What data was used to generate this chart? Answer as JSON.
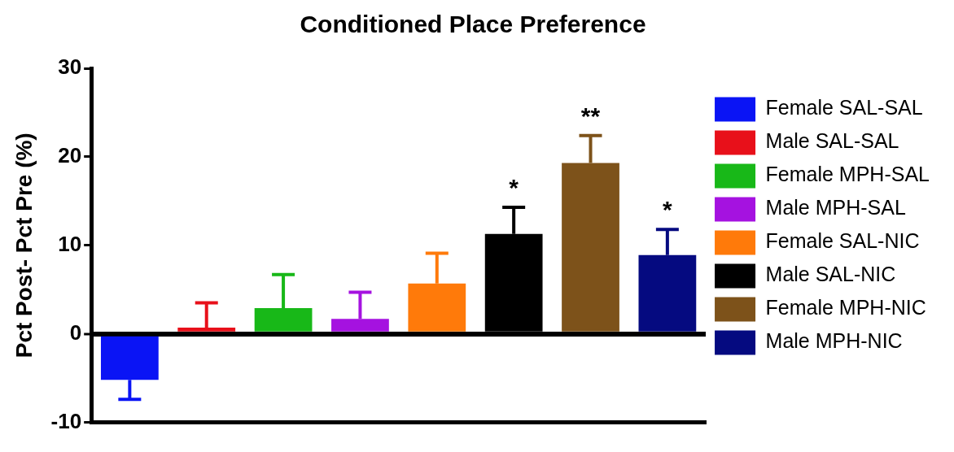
{
  "chart_data": {
    "type": "bar",
    "title": "Conditioned Place Preference",
    "ylabel": "Pct Post- Pct Pre (%)",
    "categories": [
      null,
      null,
      null,
      null,
      null,
      null,
      null,
      null
    ],
    "series": [
      {
        "name": "Female SAL-SAL",
        "color": "#0a14f5",
        "values": [
          -5.2,
          null,
          null,
          null,
          null,
          null,
          null,
          null
        ],
        "errors": [
          [
            -7.4,
            -5.2
          ],
          null,
          null,
          null,
          null,
          null,
          null,
          null
        ]
      },
      {
        "name": "Male SAL-SAL",
        "color": "#e8101a",
        "values": [
          null,
          0.7,
          null,
          null,
          null,
          null,
          null,
          null
        ],
        "errors": [
          null,
          [
            0.7,
            3.5
          ],
          null,
          null,
          null,
          null,
          null,
          null
        ]
      },
      {
        "name": "Female MPH-SAL",
        "color": "#18b818",
        "values": [
          null,
          null,
          2.9,
          null,
          null,
          null,
          null,
          null
        ],
        "errors": [
          null,
          null,
          [
            2.9,
            6.7
          ],
          null,
          null,
          null,
          null,
          null
        ]
      },
      {
        "name": "Male MPH-SAL",
        "color": "#a512e0",
        "values": [
          null,
          null,
          null,
          1.7,
          null,
          null,
          null,
          null
        ],
        "errors": [
          null,
          null,
          null,
          [
            1.7,
            4.7
          ],
          null,
          null,
          null,
          null
        ]
      },
      {
        "name": "Female SAL-NIC",
        "color": "#ff7a0a",
        "values": [
          null,
          null,
          null,
          null,
          5.7,
          null,
          null,
          null
        ],
        "errors": [
          null,
          null,
          null,
          null,
          [
            5.7,
            9.1
          ],
          null,
          null,
          null
        ]
      },
      {
        "name": "Male SAL-NIC",
        "color": "#000000",
        "values": [
          null,
          null,
          null,
          null,
          null,
          11.3,
          null,
          null
        ],
        "errors": [
          null,
          null,
          null,
          null,
          null,
          [
            11.3,
            14.3
          ],
          null,
          null
        ],
        "value_labels": [
          null,
          null,
          null,
          null,
          null,
          "*",
          null,
          null
        ]
      },
      {
        "name": "Female MPH-NIC",
        "color": "#7d521a",
        "values": [
          null,
          null,
          null,
          null,
          null,
          null,
          19.3,
          null
        ],
        "errors": [
          null,
          null,
          null,
          null,
          null,
          null,
          [
            19.3,
            22.4
          ],
          null
        ],
        "value_labels": [
          null,
          null,
          null,
          null,
          null,
          null,
          "**",
          null
        ]
      },
      {
        "name": "Male MPH-NIC",
        "color": "#050a80",
        "values": [
          null,
          null,
          null,
          null,
          null,
          null,
          null,
          8.9
        ],
        "errors": [
          null,
          null,
          null,
          null,
          null,
          null,
          null,
          [
            8.9,
            11.8
          ]
        ],
        "value_labels": [
          null,
          null,
          null,
          null,
          null,
          null,
          null,
          "*"
        ]
      }
    ],
    "ylim": [
      -10,
      30
    ],
    "yticks": [
      -10,
      0,
      10,
      20,
      30
    ],
    "legend": "right"
  }
}
